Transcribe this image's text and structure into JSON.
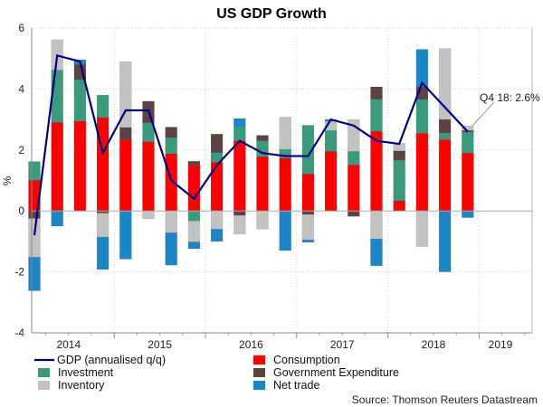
{
  "chart_data": {
    "type": "bar",
    "stacked": true,
    "title": "US GDP Growth",
    "ylabel": "%",
    "xlabel": "",
    "ylim": [
      -4,
      6
    ],
    "yticks": [
      "-4",
      "-2",
      "0",
      "2",
      "4",
      "6"
    ],
    "year_labels": [
      "2014",
      "2015",
      "2016",
      "2017",
      "2018",
      "2019"
    ],
    "grid": true,
    "legend_position": "bottom",
    "x": [
      "2014Q1",
      "2014Q2",
      "2014Q3",
      "2014Q4",
      "2015Q1",
      "2015Q2",
      "2015Q3",
      "2015Q4",
      "2016Q1",
      "2016Q2",
      "2016Q3",
      "2016Q4",
      "2017Q1",
      "2017Q2",
      "2017Q3",
      "2017Q4",
      "2018Q1",
      "2018Q2",
      "2018Q3",
      "2018Q4"
    ],
    "series": [
      {
        "name": "Consumption",
        "color": "#ff0000",
        "values": [
          1.0,
          2.9,
          2.95,
          3.07,
          2.34,
          2.27,
          1.88,
          1.51,
          1.6,
          2.3,
          1.78,
          1.73,
          1.21,
          1.95,
          1.51,
          2.61,
          0.33,
          2.55,
          2.34,
          1.9
        ]
      },
      {
        "name": "Investment",
        "color": "#3b9a7c",
        "values": [
          0.62,
          1.72,
          1.36,
          0.73,
          0,
          0.62,
          0.53,
          -0.33,
          0.32,
          0.46,
          0.52,
          0.29,
          1.6,
          0.69,
          0.44,
          1.06,
          1.34,
          1.11,
          0.22,
          0.69
        ]
      },
      {
        "name": "Government Expenditure",
        "color": "#5c4343",
        "values": [
          -0.25,
          0,
          0.49,
          -0.07,
          0.4,
          0.71,
          0.34,
          0.12,
          0.6,
          -0.15,
          0.18,
          0,
          -0.12,
          0,
          -0.18,
          0.4,
          0.3,
          0.41,
          0.44,
          0.05
        ]
      },
      {
        "name": "Inventory",
        "color": "#c2c2c2",
        "values": [
          -1.27,
          1.0,
          0,
          -0.79,
          2.16,
          -0.26,
          -0.72,
          -0.69,
          -0.6,
          -0.61,
          -0.6,
          1.06,
          -0.83,
          0.3,
          1.05,
          -0.92,
          0.25,
          -1.17,
          2.33,
          0.15
        ]
      },
      {
        "name": "Net trade",
        "color": "#1a86c6",
        "values": [
          -1.1,
          -0.5,
          0.16,
          -1.06,
          -1.58,
          0,
          -1.06,
          -0.22,
          -0.4,
          0.27,
          0,
          -1.3,
          -0.08,
          0.06,
          0,
          -0.88,
          0,
          1.23,
          -2.0,
          -0.22
        ]
      }
    ],
    "line": {
      "name": "GDP (annualised q/q)",
      "color": "#00007f",
      "values": [
        -0.8,
        5.1,
        4.9,
        1.9,
        3.3,
        3.3,
        1.0,
        0.4,
        1.5,
        2.3,
        1.9,
        1.8,
        1.8,
        3.0,
        2.8,
        2.3,
        2.2,
        4.2,
        3.4,
        2.6
      ]
    },
    "annotation": "Q4 18: 2.6%",
    "source": "Source: Thomson Reuters Datastream"
  }
}
